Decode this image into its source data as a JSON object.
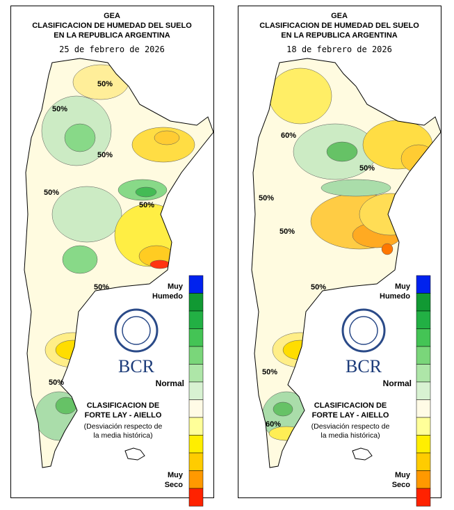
{
  "panels": [
    {
      "header": {
        "org": "GEA",
        "line1": "CLASIFICACION DE HUMEDAD DEL SUELO",
        "line2": "EN LA REPUBLICA ARGENTINA",
        "date": "25 de febrero de 2026"
      },
      "contour_labels": [
        "50%",
        "50%",
        "50%",
        "50%",
        "50%",
        "50%",
        "50%"
      ],
      "legend": {
        "wet1": "Muy",
        "wet2": "Humedo",
        "normal": "Normal",
        "dry1": "Muy",
        "dry2": "Seco"
      },
      "logo": "BCR",
      "classification": {
        "line1": "CLASIFICACION DE",
        "line2": "FORTE LAY - AIELLO",
        "line3": "(Desviación respecto de",
        "line4": "la media histórica)"
      }
    },
    {
      "header": {
        "org": "GEA",
        "line1": "CLASIFICACION DE HUMEDAD DEL SUELO",
        "line2": "EN LA REPUBLICA ARGENTINA",
        "date": "18 de febrero de 2026"
      },
      "contour_labels": [
        "60%",
        "50%",
        "50%",
        "50%",
        "50%",
        "50%",
        "60%"
      ],
      "legend": {
        "wet1": "Muy",
        "wet2": "Humedo",
        "normal": "Normal",
        "dry1": "Muy",
        "dry2": "Seco"
      },
      "logo": "BCR",
      "classification": {
        "line1": "CLASIFICACION DE",
        "line2": "FORTE LAY - AIELLO",
        "line3": "(Desviación respecto de",
        "line4": "la media histórica)"
      }
    }
  ]
}
